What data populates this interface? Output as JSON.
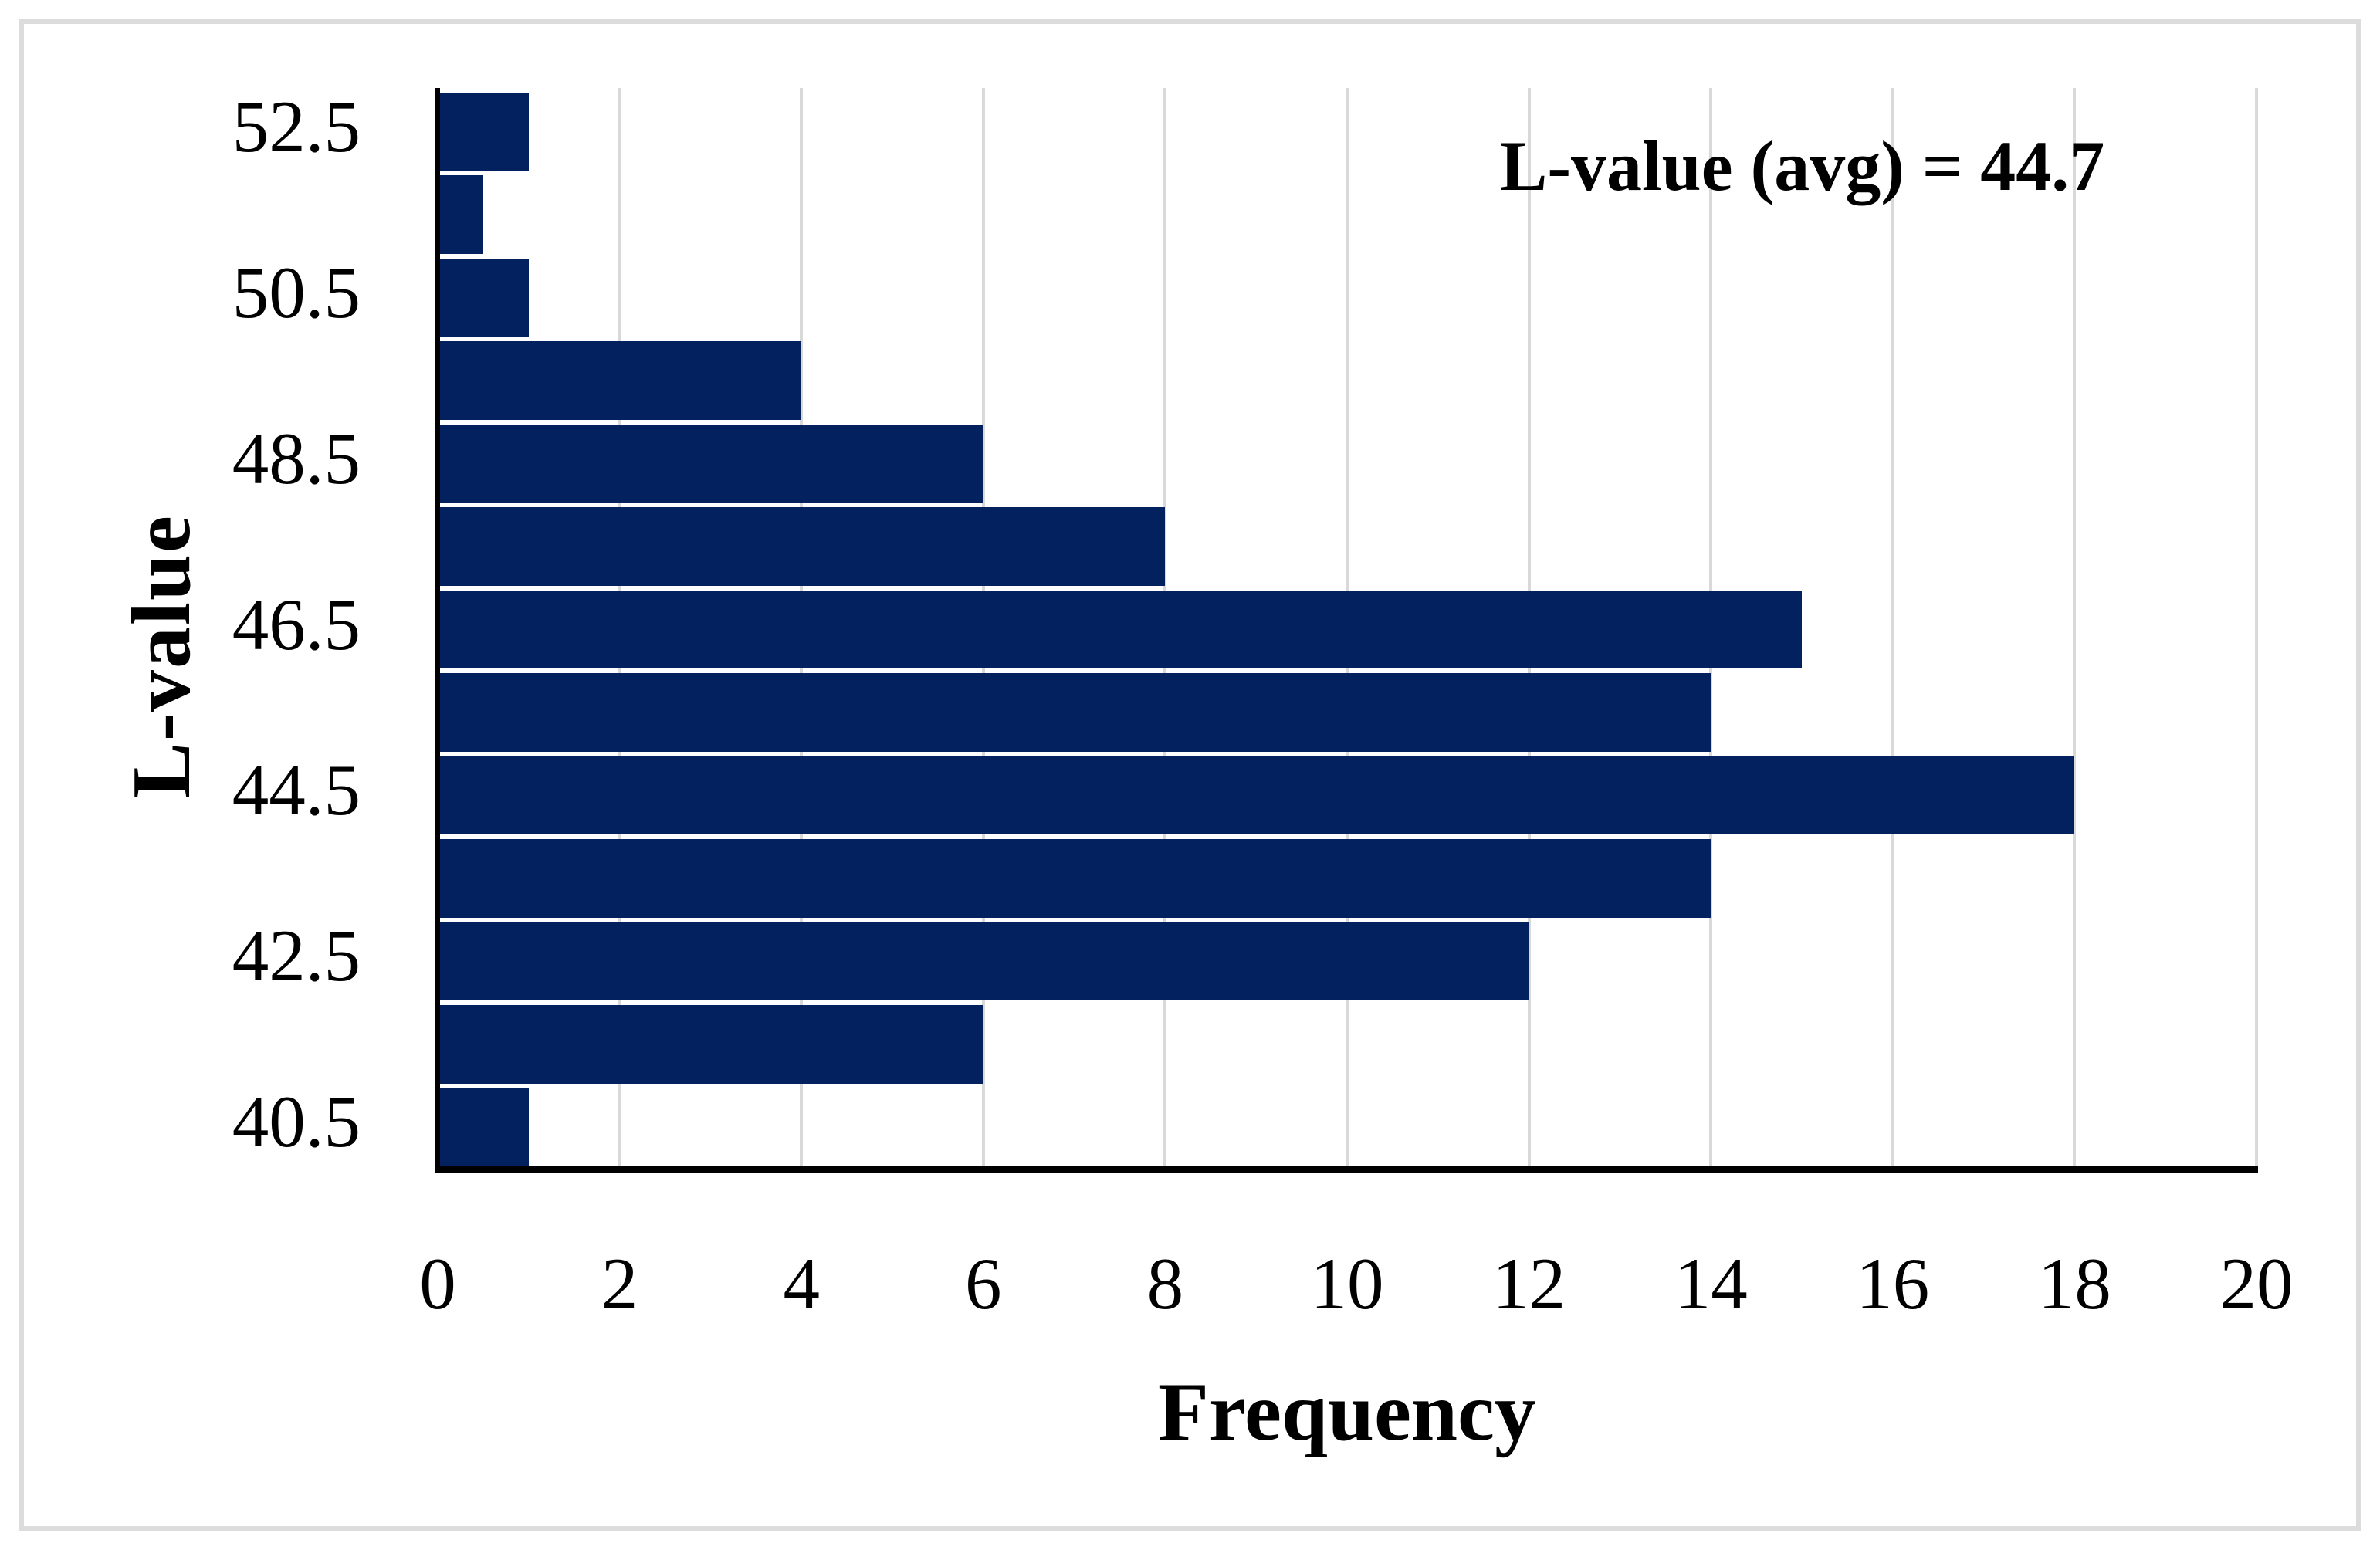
{
  "figure": {
    "background": "#FFFFFF",
    "border_color": "#DCDCDC"
  },
  "chart_data": {
    "type": "bar",
    "orientation": "horizontal",
    "xlabel": "Frequency",
    "ylabel": "L-value",
    "annotation": "L-value (avg) = 44.7",
    "bar_color": "#02215E",
    "gridline_color": "#D9D9D9",
    "axis_color": "#000000",
    "xlim": [
      0,
      20
    ],
    "x_ticks": [
      "0",
      "2",
      "4",
      "6",
      "8",
      "10",
      "12",
      "14",
      "16",
      "18",
      "20"
    ],
    "x_tick_step": 2,
    "grid": "vertical-only",
    "legend": "none",
    "bins": [
      {
        "label": "52.5",
        "value": 1
      },
      {
        "label": "",
        "value": 0.5
      },
      {
        "label": "50.5",
        "value": 1
      },
      {
        "label": "",
        "value": 4
      },
      {
        "label": "48.5",
        "value": 6
      },
      {
        "label": "",
        "value": 8
      },
      {
        "label": "46.5",
        "value": 15
      },
      {
        "label": "",
        "value": 14
      },
      {
        "label": "44.5",
        "value": 18
      },
      {
        "label": "",
        "value": 14
      },
      {
        "label": "42.5",
        "value": 12
      },
      {
        "label": "",
        "value": 6
      },
      {
        "label": "40.5",
        "value": 1
      }
    ]
  }
}
